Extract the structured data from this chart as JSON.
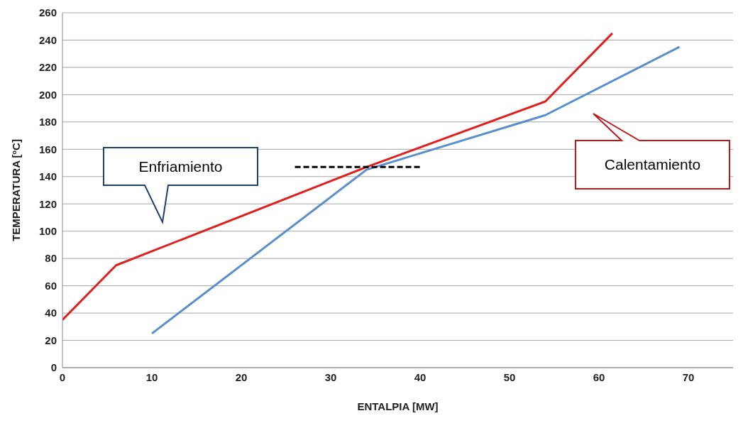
{
  "chart_data": {
    "type": "line",
    "xlabel": "ENTALPIA [MW]",
    "ylabel": "TEMPERATURA [ºC]",
    "xlim": [
      0,
      75
    ],
    "xticks": [
      0,
      10,
      20,
      30,
      40,
      50,
      60,
      70
    ],
    "ylim": [
      0,
      260
    ],
    "yticks": [
      0,
      20,
      40,
      60,
      80,
      100,
      120,
      140,
      160,
      180,
      200,
      220,
      240,
      260
    ],
    "grid": "y",
    "marker": "none",
    "line_style": "solid",
    "series": [
      {
        "color": "#e0201f",
        "x": [
          0,
          6,
          34,
          54,
          61.5
        ],
        "values": [
          35,
          75,
          147,
          195,
          245
        ]
      },
      {
        "color": "#5b8fc9",
        "x": [
          10,
          34,
          54,
          69
        ],
        "values": [
          25,
          145,
          185,
          235
        ]
      },
      {
        "color": "#000000",
        "line_style": "dashed",
        "x": [
          26,
          40
        ],
        "values": [
          147,
          147
        ]
      }
    ],
    "annotations": [
      "Enfriamiento",
      "Calentamiento"
    ]
  }
}
